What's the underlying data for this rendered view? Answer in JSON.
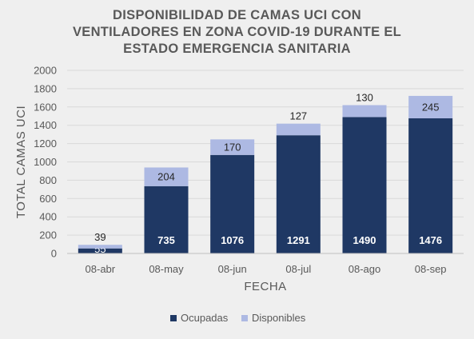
{
  "chart_data": {
    "type": "bar",
    "stacked": true,
    "title_lines": [
      "DISPONIBILIDAD DE CAMAS UCI CON",
      "VENTILADORES EN ZONA COVID-19 DURANTE EL",
      "ESTADO EMERGENCIA SANITARIA"
    ],
    "xlabel": "FECHA",
    "ylabel": "TOTAL CAMAS UCI",
    "ylim": [
      0,
      2000
    ],
    "yticks": [
      0,
      200,
      400,
      600,
      800,
      1000,
      1200,
      1400,
      1600,
      1800,
      2000
    ],
    "categories": [
      "08-abr",
      "08-may",
      "08-jun",
      "08-jul",
      "08-ago",
      "08-sep"
    ],
    "series": [
      {
        "name": "Ocupadas",
        "values": [
          55,
          735,
          1076,
          1291,
          1490,
          1476
        ],
        "color": "#1f3864",
        "label_color": "#ffffff"
      },
      {
        "name": "Disponibles",
        "values": [
          39,
          204,
          170,
          127,
          130,
          245
        ],
        "color": "#adb9e3",
        "label_color": "#262626"
      }
    ],
    "data_labels": [
      [
        "55",
        "735",
        "1076",
        "1291",
        "1490",
        "1476"
      ],
      [
        "39",
        "204",
        "170",
        "127",
        "130",
        "245"
      ]
    ],
    "grid": true,
    "legend_position": "bottom"
  }
}
